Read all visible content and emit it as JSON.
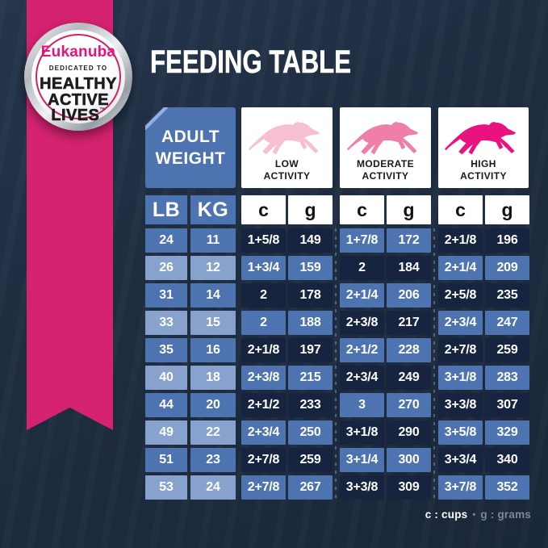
{
  "badge": {
    "brand": "Eukanuba",
    "tagline": "DEDICATED TO",
    "line1": "HEALTHY",
    "line2": "ACTIVE",
    "line3": "LIVES",
    "trademark": "™"
  },
  "title": "FEEDING TABLE",
  "table": {
    "corner": {
      "line1": "ADULT",
      "line2": "WEIGHT"
    },
    "activities": [
      {
        "label_line1": "LOW",
        "label_line2": "ACTIVITY",
        "dog_color": "#f6c0d2"
      },
      {
        "label_line1": "MODERATE",
        "label_line2": "ACTIVITY",
        "dog_color": "#ee7fa8"
      },
      {
        "label_line1": "HIGH",
        "label_line2": "ACTIVITY",
        "dog_color": "#e8137e"
      }
    ],
    "unit_headers": [
      "LB",
      "KG",
      "c",
      "g",
      "c",
      "g",
      "c",
      "g"
    ]
  },
  "legend": {
    "cups": "c : cups",
    "separator": "•",
    "grams": "g : grams"
  },
  "colors": {
    "background": "#1f2d41",
    "ribbon_pink": "#d62371",
    "brand_pink": "#e6137e",
    "cell_medium_blue": "#4d73b0",
    "cell_light_blue": "#87a2cd",
    "cell_dark_navy": "#162440"
  },
  "chart_data": {
    "type": "table",
    "title": "FEEDING TABLE",
    "columns": [
      "Adult Weight (LB)",
      "Adult Weight (KG)",
      "Low Activity (c)",
      "Low Activity (g)",
      "Moderate Activity (c)",
      "Moderate Activity (g)",
      "High Activity (c)",
      "High Activity (g)"
    ],
    "units_note": "c : cups, g : grams",
    "rows": [
      [
        "24",
        "11",
        "1+5/8",
        "149",
        "1+7/8",
        "172",
        "2+1/8",
        "196"
      ],
      [
        "26",
        "12",
        "1+3/4",
        "159",
        "2",
        "184",
        "2+1/4",
        "209"
      ],
      [
        "31",
        "14",
        "2",
        "178",
        "2+1/4",
        "206",
        "2+5/8",
        "235"
      ],
      [
        "33",
        "15",
        "2",
        "188",
        "2+3/8",
        "217",
        "2+3/4",
        "247"
      ],
      [
        "35",
        "16",
        "2+1/8",
        "197",
        "2+1/2",
        "228",
        "2+7/8",
        "259"
      ],
      [
        "40",
        "18",
        "2+3/8",
        "215",
        "2+3/4",
        "249",
        "3+1/8",
        "283"
      ],
      [
        "44",
        "20",
        "2+1/2",
        "233",
        "3",
        "270",
        "3+3/8",
        "307"
      ],
      [
        "49",
        "22",
        "2+3/4",
        "250",
        "3+1/8",
        "290",
        "3+5/8",
        "329"
      ],
      [
        "51",
        "23",
        "2+7/8",
        "259",
        "3+1/4",
        "300",
        "3+3/4",
        "340"
      ],
      [
        "53",
        "24",
        "2+7/8",
        "267",
        "3+3/8",
        "309",
        "3+7/8",
        "352"
      ]
    ]
  }
}
